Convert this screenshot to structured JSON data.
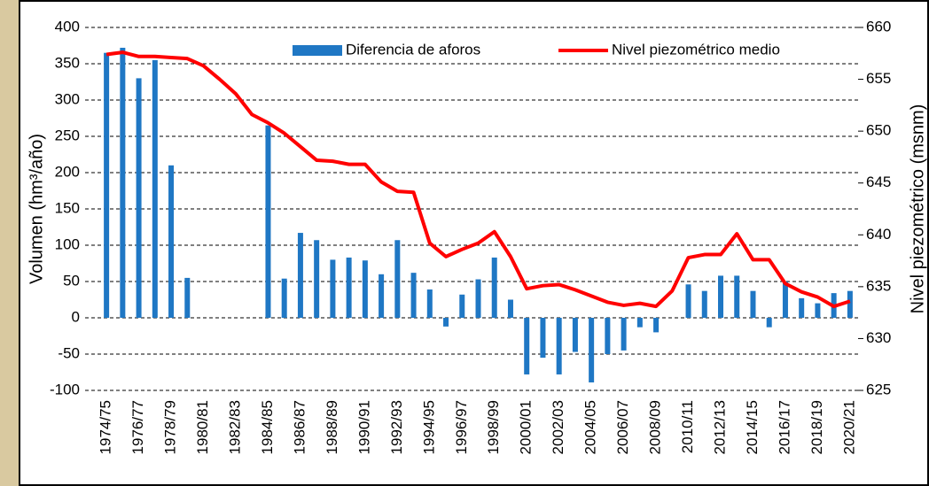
{
  "chart_data": {
    "type": "combo",
    "y_label": "Volumen (hm³/año)",
    "y2_label": "Nivel piezométrico (msnm)",
    "categories": [
      "1974/75",
      null,
      "1976/77",
      null,
      "1978/79",
      null,
      "1980/81",
      null,
      "1982/83",
      null,
      "1984/85",
      null,
      "1986/87",
      null,
      "1988/89",
      null,
      "1990/91",
      null,
      "1992/93",
      null,
      "1994/95",
      null,
      "1996/97",
      null,
      "1998/99",
      null,
      "2000/01",
      null,
      "2002/03",
      null,
      "2004/05",
      null,
      "2006/07",
      null,
      "2008/09",
      null,
      "2010/11",
      null,
      "2012/13",
      null,
      "2014/15",
      null,
      "2016/17",
      null,
      "2018/19",
      null,
      "2020/21"
    ],
    "series": [
      {
        "name": "Diferencia de aforos",
        "type": "bar",
        "axis": "y",
        "color": "#1f77c4",
        "values": [
          365,
          372,
          330,
          355,
          210,
          55,
          null,
          null,
          null,
          null,
          265,
          54,
          117,
          107,
          80,
          83,
          79,
          60,
          107,
          62,
          39,
          -12,
          32,
          53,
          83,
          25,
          -78,
          -55,
          -78,
          -47,
          -89,
          -50,
          -45,
          -13,
          -20,
          null,
          46,
          37,
          58,
          58,
          37,
          -13,
          50,
          27,
          20,
          34,
          37
        ]
      },
      {
        "name": "Nivel piezométrico medio",
        "type": "line",
        "axis": "y2",
        "color": "#ff0000",
        "values": [
          657.4,
          657.6,
          657.2,
          657.2,
          657.1,
          657.0,
          656.3,
          655.0,
          653.6,
          651.6,
          650.8,
          649.8,
          648.5,
          647.2,
          647.1,
          646.8,
          646.8,
          645.1,
          644.2,
          644.1,
          639.2,
          637.9,
          638.6,
          639.2,
          640.3,
          637.9,
          634.8,
          635.1,
          635.2,
          634.7,
          634.1,
          633.5,
          633.2,
          633.4,
          633.1,
          634.6,
          637.8,
          638.1,
          638.1,
          640.1,
          637.6,
          637.6,
          635.3,
          634.5,
          634.0,
          633.1,
          633.6
        ]
      }
    ],
    "ylim": [
      -100,
      400
    ],
    "yticks": [
      400,
      350,
      300,
      250,
      200,
      150,
      100,
      50,
      0,
      -50,
      -100
    ],
    "y2lim": [
      625,
      660
    ],
    "y2ticks": [
      660,
      655,
      650,
      645,
      640,
      635,
      630,
      625
    ],
    "grid": true
  }
}
